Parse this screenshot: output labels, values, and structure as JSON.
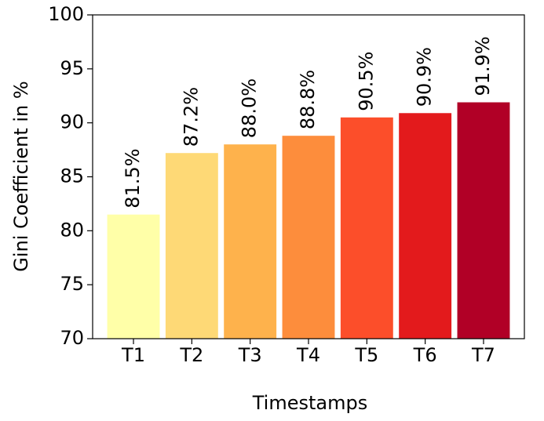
{
  "chart_data": {
    "type": "bar",
    "xlabel": "Timestamps",
    "ylabel": "Gini Coefficient in %",
    "categories": [
      "T1",
      "T2",
      "T3",
      "T4",
      "T5",
      "T6",
      "T7"
    ],
    "values": [
      81.5,
      87.2,
      88.0,
      88.8,
      90.5,
      90.9,
      91.9
    ],
    "value_labels": [
      "81.5%",
      "87.2%",
      "88.0%",
      "88.8%",
      "90.5%",
      "90.9%",
      "91.9%"
    ],
    "colors": [
      "#ffffa8",
      "#fed976",
      "#feb24c",
      "#fd8d3c",
      "#fc4e2a",
      "#e31a1c",
      "#b10026"
    ],
    "ylim": [
      70,
      100
    ],
    "yticks": [
      70,
      75,
      80,
      85,
      90,
      95,
      100
    ]
  }
}
